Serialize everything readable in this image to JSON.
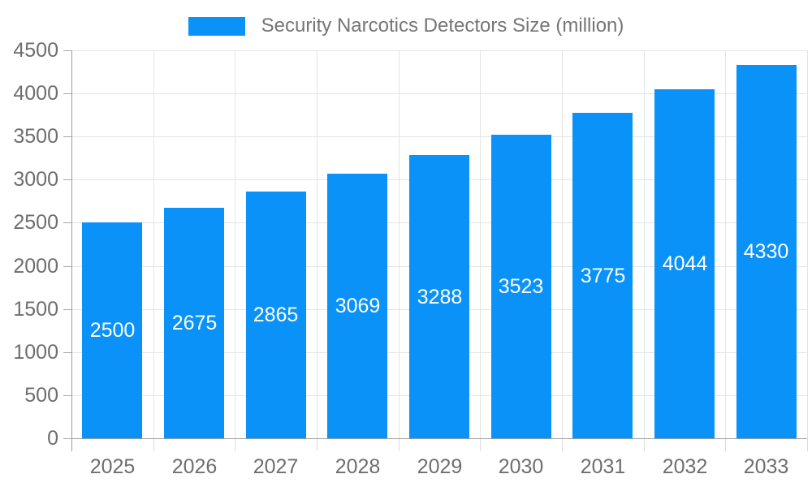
{
  "chart_data": {
    "type": "bar",
    "title": "Security Narcotics Detectors Size (million)",
    "categories": [
      "2025",
      "2026",
      "2027",
      "2028",
      "2029",
      "2030",
      "2031",
      "2032",
      "2033"
    ],
    "series": [
      {
        "name": "Security Narcotics Detectors Size (million)",
        "values": [
          2500,
          2675,
          2865,
          3069,
          3288,
          3523,
          3775,
          4044,
          4330
        ]
      }
    ],
    "xlabel": "",
    "ylabel": "",
    "ylim": [
      0,
      4500
    ],
    "y_ticks": [
      0,
      500,
      1000,
      1500,
      2000,
      2500,
      3000,
      3500,
      4000,
      4500
    ],
    "grid": true,
    "legend_position": "top",
    "value_labels_position": "inside-center",
    "colors": {
      "bar": "#0a92f8",
      "bar_label_text": "#ffffff",
      "grid_line": "#e4e4e4",
      "axis_line": "#9c9c9c",
      "x_tick_mark": "#dcdcdc",
      "y_tick_mark": "#a8a8a8",
      "tick_text": "#6e6e6e",
      "legend_text": "#757575",
      "background": "#ffffff"
    }
  }
}
